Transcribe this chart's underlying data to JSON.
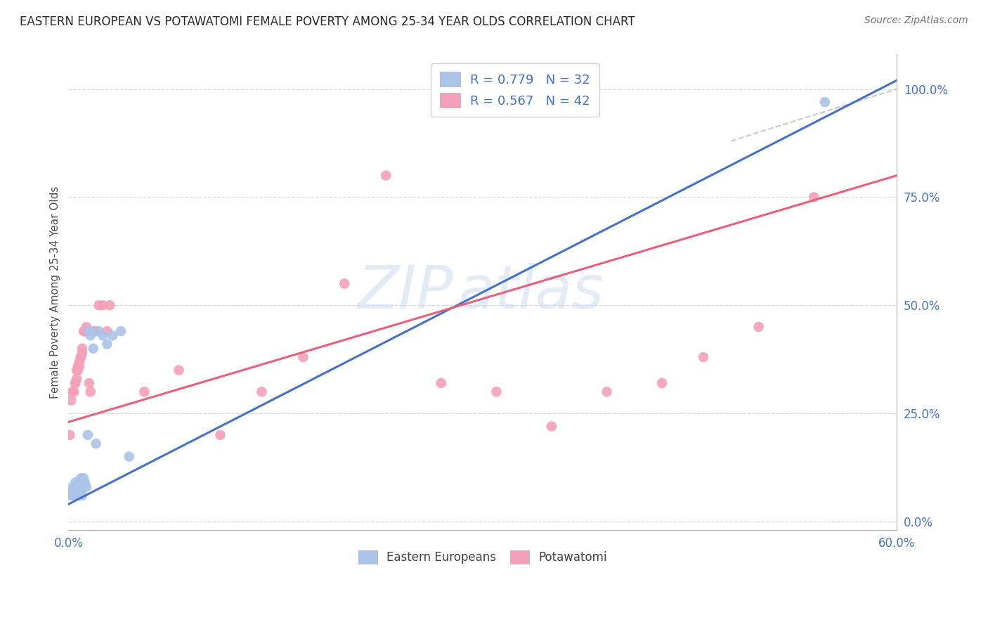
{
  "title": "EASTERN EUROPEAN VS POTAWATOMI FEMALE POVERTY AMONG 25-34 YEAR OLDS CORRELATION CHART",
  "source": "Source: ZipAtlas.com",
  "ylabel": "Female Poverty Among 25-34 Year Olds",
  "ytick_labels": [
    "0.0%",
    "25.0%",
    "50.0%",
    "75.0%",
    "100.0%"
  ],
  "ytick_values": [
    0.0,
    0.25,
    0.5,
    0.75,
    1.0
  ],
  "xlim": [
    0.0,
    0.6
  ],
  "ylim": [
    -0.02,
    1.08
  ],
  "watermark_line1": "ZIP",
  "watermark_line2": "atlas",
  "eastern_color": "#aac4e8",
  "eastern_line_color": "#4472c4",
  "potawatomi_color": "#f4a0b8",
  "potawatomi_line_color": "#e8607a",
  "background_color": "#ffffff",
  "grid_color": "#d8d8e0",
  "legend_r1": "R = 0.779",
  "legend_n1": "N = 32",
  "legend_r2": "R = 0.567",
  "legend_n2": "N = 42",
  "legend_color_blue": "#4472c4",
  "eastern_x": [
    0.002,
    0.003,
    0.003,
    0.004,
    0.005,
    0.005,
    0.006,
    0.006,
    0.007,
    0.007,
    0.008,
    0.008,
    0.009,
    0.009,
    0.01,
    0.01,
    0.011,
    0.012,
    0.013,
    0.014,
    0.015,
    0.016,
    0.018,
    0.02,
    0.022,
    0.025,
    0.028,
    0.032,
    0.038,
    0.044,
    0.295,
    0.548
  ],
  "eastern_y": [
    0.06,
    0.07,
    0.08,
    0.06,
    0.07,
    0.09,
    0.06,
    0.08,
    0.07,
    0.09,
    0.06,
    0.08,
    0.07,
    0.1,
    0.06,
    0.09,
    0.1,
    0.09,
    0.08,
    0.2,
    0.44,
    0.43,
    0.4,
    0.18,
    0.44,
    0.43,
    0.41,
    0.43,
    0.44,
    0.15,
    0.97,
    0.97
  ],
  "potawatomi_x": [
    0.001,
    0.002,
    0.003,
    0.004,
    0.005,
    0.005,
    0.006,
    0.006,
    0.007,
    0.007,
    0.008,
    0.008,
    0.009,
    0.009,
    0.01,
    0.01,
    0.011,
    0.012,
    0.013,
    0.015,
    0.016,
    0.018,
    0.02,
    0.022,
    0.025,
    0.028,
    0.03,
    0.055,
    0.08,
    0.11,
    0.14,
    0.17,
    0.2,
    0.23,
    0.27,
    0.31,
    0.35,
    0.39,
    0.43,
    0.46,
    0.5,
    0.54
  ],
  "potawatomi_y": [
    0.2,
    0.28,
    0.3,
    0.3,
    0.32,
    0.32,
    0.33,
    0.35,
    0.35,
    0.36,
    0.36,
    0.37,
    0.38,
    0.38,
    0.39,
    0.4,
    0.44,
    0.44,
    0.45,
    0.32,
    0.3,
    0.44,
    0.44,
    0.5,
    0.5,
    0.44,
    0.5,
    0.3,
    0.35,
    0.2,
    0.3,
    0.38,
    0.55,
    0.8,
    0.32,
    0.3,
    0.22,
    0.3,
    0.32,
    0.38,
    0.45,
    0.75
  ],
  "east_line_x": [
    0.0,
    0.6
  ],
  "east_line_y": [
    0.04,
    1.02
  ],
  "pota_line_x": [
    0.0,
    0.6
  ],
  "pota_line_y": [
    0.23,
    0.8
  ],
  "dash_line_x": [
    0.48,
    0.6
  ],
  "dash_line_y": [
    0.88,
    1.0
  ]
}
